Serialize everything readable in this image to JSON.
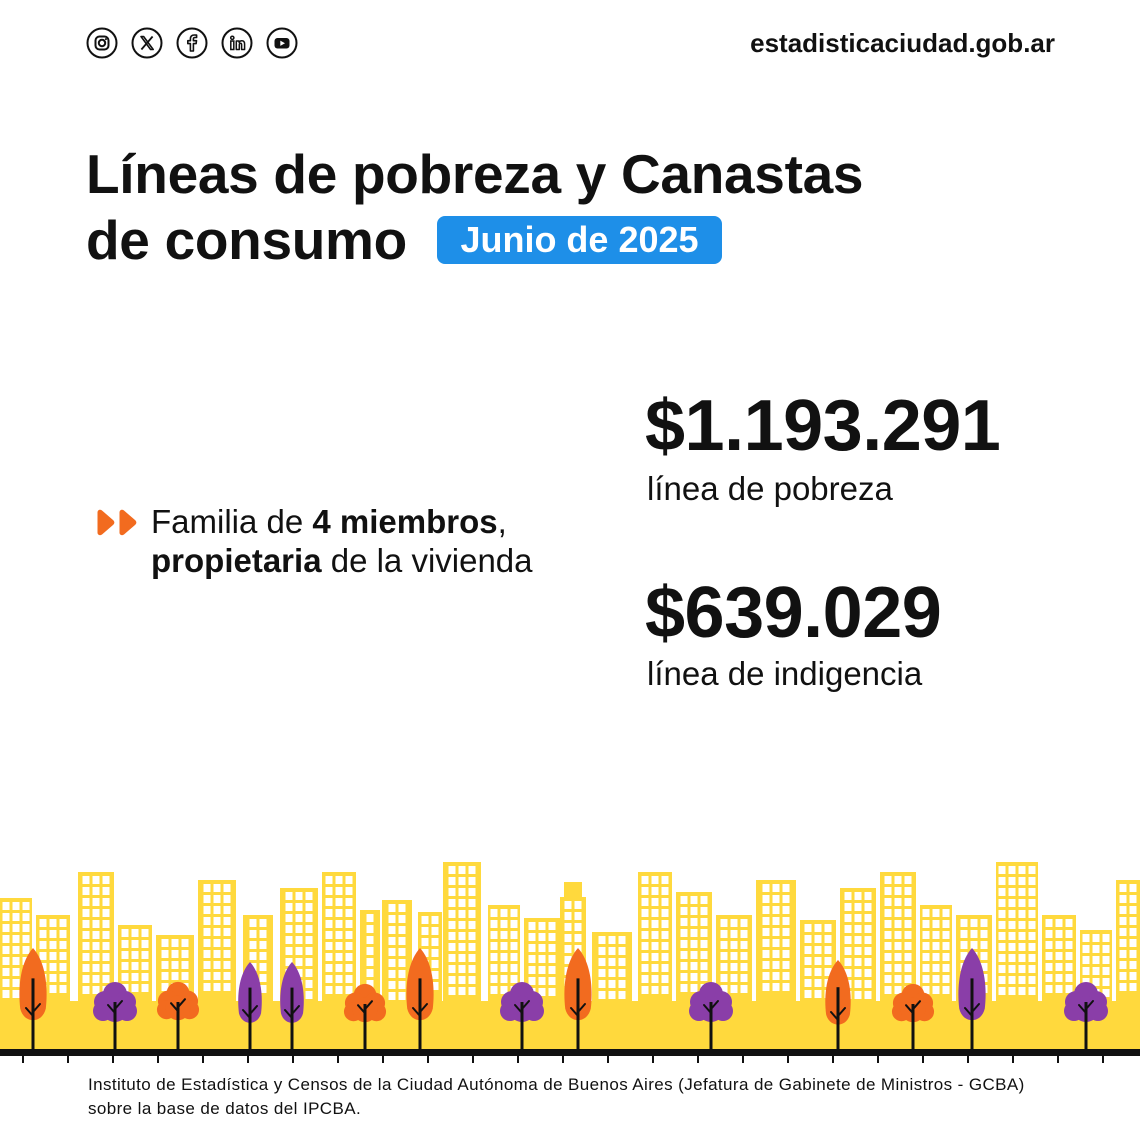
{
  "header": {
    "social_icons": [
      "instagram-icon",
      "x-icon",
      "facebook-icon",
      "linkedin-icon",
      "youtube-icon"
    ],
    "website": "estadisticaciudad.gob.ar"
  },
  "title": {
    "line1": "Líneas de pobreza y Canastas",
    "line2": "de consumo",
    "period_badge": "Junio de 2025"
  },
  "household": {
    "icon": "double-chevron-right-icon",
    "text_prefix": "Familia de ",
    "members": "4 miembros",
    "comma": ",",
    "tenure": "propietaria",
    "text_suffix": " de la vivienda"
  },
  "lines": [
    {
      "amount": "$1.193.291",
      "label": "línea de pobreza"
    },
    {
      "amount": "$639.029",
      "label": "línea de indigencia"
    }
  ],
  "footer": {
    "line1": "Instituto de Estadística y Censos de la Ciudad Autónoma de Buenos Aires (Jefatura de Gabinete de Ministros - GCBA)",
    "line2": "sobre la base de datos del IPCBA."
  },
  "colors": {
    "text": "#111111",
    "badge_blue": "#1E8FE8",
    "accent_orange": "#F26B1F",
    "tree_orange": "#F26B1F",
    "tree_purple": "#8A3EA8",
    "building_yellow": "#FFD93D"
  }
}
